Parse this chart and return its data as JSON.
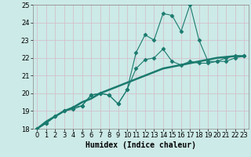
{
  "xlabel": "Humidex (Indice chaleur)",
  "x": [
    0,
    1,
    2,
    3,
    4,
    5,
    6,
    7,
    8,
    9,
    10,
    11,
    12,
    13,
    14,
    15,
    16,
    17,
    18,
    19,
    20,
    21,
    22,
    23
  ],
  "line1": [
    18.0,
    18.3,
    18.7,
    19.0,
    19.1,
    19.3,
    19.9,
    20.0,
    19.9,
    19.4,
    20.2,
    22.3,
    23.3,
    23.0,
    24.5,
    24.4,
    23.5,
    25.0,
    23.0,
    21.8,
    21.8,
    22.0,
    22.1,
    22.1
  ],
  "line2": [
    18.0,
    18.3,
    18.7,
    19.0,
    19.2,
    19.3,
    19.9,
    20.0,
    19.9,
    19.4,
    20.2,
    21.4,
    21.9,
    22.0,
    22.5,
    21.8,
    21.6,
    21.8,
    21.7,
    21.7,
    21.8,
    21.8,
    22.0,
    22.1
  ],
  "line_ref": [
    18.0,
    18.4,
    18.7,
    19.0,
    19.2,
    19.5,
    19.7,
    20.0,
    20.2,
    20.4,
    20.6,
    20.8,
    21.0,
    21.2,
    21.4,
    21.5,
    21.6,
    21.7,
    21.8,
    21.9,
    22.0,
    22.05,
    22.1,
    22.1
  ],
  "line_color": "#1a7a6e",
  "bg_color": "#cceae7",
  "grid_color": "#d4b8c8",
  "ylim": [
    18,
    25
  ],
  "xlim": [
    -0.5,
    23.5
  ],
  "yticks": [
    18,
    19,
    20,
    21,
    22,
    23,
    24,
    25
  ],
  "xticks": [
    0,
    1,
    2,
    3,
    4,
    5,
    6,
    7,
    8,
    9,
    10,
    11,
    12,
    13,
    14,
    15,
    16,
    17,
    18,
    19,
    20,
    21,
    22,
    23
  ],
  "marker": "D",
  "markersize": 2.5,
  "linewidth": 0.8,
  "ref_linewidth": 1.8,
  "xlabel_fontsize": 7,
  "tick_fontsize": 6
}
